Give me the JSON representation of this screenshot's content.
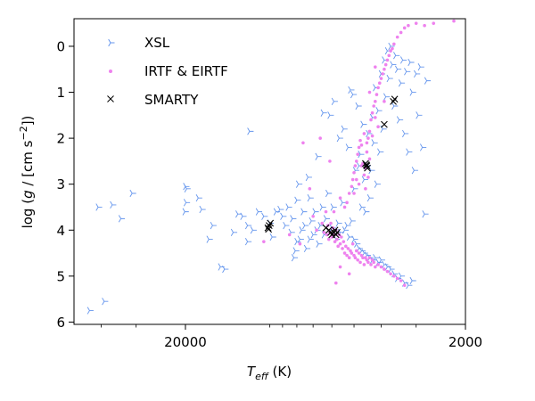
{
  "chart_data": {
    "type": "scatter",
    "xlabel": {
      "base": "T",
      "sub": "eff",
      "unit": " (K)"
    },
    "ylabel": {
      "pre": "log (",
      "g": "g",
      "mid": " / [cm s",
      "sup": "−2",
      "post": "])"
    },
    "x_scale": "log",
    "x_reversed": true,
    "y_reversed": true,
    "xlim": [
      50000,
      2000
    ],
    "ylim": [
      6.05,
      -0.6
    ],
    "x_major_ticks": [
      {
        "value": 20000,
        "label": "20000"
      },
      {
        "value": 2000,
        "label": "2000"
      }
    ],
    "x_minor_ticks": [
      40000,
      30000,
      10000,
      9000,
      8000,
      7000,
      6000,
      5000,
      4000,
      3000
    ],
    "y_ticks": [
      {
        "value": 0,
        "label": "0"
      },
      {
        "value": 1,
        "label": "1"
      },
      {
        "value": 2,
        "label": "2"
      },
      {
        "value": 3,
        "label": "3"
      },
      {
        "value": 4,
        "label": "4"
      },
      {
        "value": 5,
        "label": "5"
      },
      {
        "value": 6,
        "label": "6"
      }
    ],
    "grid": false,
    "legend_position": "top-left",
    "series": [
      {
        "name": "XSL",
        "marker": "tri-right",
        "color": "#6495ED",
        "points": [
          [
            44000,
            5.75
          ],
          [
            39000,
            5.55
          ],
          [
            41000,
            3.5
          ],
          [
            36500,
            3.45
          ],
          [
            34000,
            3.75
          ],
          [
            31000,
            3.2
          ],
          [
            20000,
            3.05
          ],
          [
            19800,
            3.1
          ],
          [
            19900,
            3.4
          ],
          [
            20100,
            3.6
          ],
          [
            18000,
            3.3
          ],
          [
            17500,
            3.55
          ],
          [
            16000,
            3.9
          ],
          [
            16500,
            4.2
          ],
          [
            15000,
            4.8
          ],
          [
            14500,
            4.85
          ],
          [
            13500,
            4.05
          ],
          [
            13000,
            3.65
          ],
          [
            12500,
            3.7
          ],
          [
            12000,
            3.9
          ],
          [
            11500,
            4.0
          ],
          [
            12000,
            4.25
          ],
          [
            11800,
            1.85
          ],
          [
            11000,
            3.6
          ],
          [
            10500,
            3.7
          ],
          [
            10000,
            3.85
          ],
          [
            9800,
            4.15
          ],
          [
            9500,
            3.6
          ],
          [
            9200,
            3.55
          ],
          [
            9000,
            3.7
          ],
          [
            8800,
            3.9
          ],
          [
            8600,
            3.5
          ],
          [
            8400,
            4.05
          ],
          [
            8300,
            3.75
          ],
          [
            8200,
            4.6
          ],
          [
            8100,
            4.45
          ],
          [
            8000,
            3.35
          ],
          [
            8000,
            4.25
          ],
          [
            7900,
            3.0
          ],
          [
            7800,
            4.2
          ],
          [
            7700,
            4.0
          ],
          [
            7600,
            3.6
          ],
          [
            7500,
            3.9
          ],
          [
            7400,
            4.4
          ],
          [
            7300,
            2.85
          ],
          [
            7200,
            3.3
          ],
          [
            7200,
            4.2
          ],
          [
            7100,
            3.8
          ],
          [
            7000,
            4.1
          ],
          [
            6900,
            3.6
          ],
          [
            6800,
            4.0
          ],
          [
            6750,
            2.4
          ],
          [
            6700,
            4.3
          ],
          [
            6600,
            3.9
          ],
          [
            6500,
            3.5
          ],
          [
            6450,
            1.45
          ],
          [
            6400,
            4.1
          ],
          [
            6300,
            3.75
          ],
          [
            6200,
            3.2
          ],
          [
            6100,
            1.5
          ],
          [
            6000,
            3.95
          ],
          [
            5950,
            3.5
          ],
          [
            5900,
            1.2
          ],
          [
            5800,
            4.2
          ],
          [
            5700,
            3.85
          ],
          [
            5650,
            2.0
          ],
          [
            5600,
            4.05
          ],
          [
            5500,
            3.4
          ],
          [
            5450,
            1.8
          ],
          [
            5400,
            4.0
          ],
          [
            5300,
            3.9
          ],
          [
            5250,
            2.2
          ],
          [
            5200,
            4.15
          ],
          [
            5150,
            0.95
          ],
          [
            5100,
            3.8
          ],
          [
            5050,
            1.05
          ],
          [
            5000,
            4.2
          ],
          [
            5000,
            3.1
          ],
          [
            4950,
            2.7
          ],
          [
            4900,
            4.3
          ],
          [
            4850,
            1.3
          ],
          [
            4800,
            2.6
          ],
          [
            4800,
            4.4
          ],
          [
            4750,
            2.35
          ],
          [
            4700,
            3.5
          ],
          [
            4700,
            4.45
          ],
          [
            4650,
            1.7
          ],
          [
            4600,
            2.9
          ],
          [
            4600,
            4.5
          ],
          [
            4550,
            3.6
          ],
          [
            4500,
            2.6
          ],
          [
            4500,
            4.55
          ],
          [
            4450,
            1.9
          ],
          [
            4400,
            3.3
          ],
          [
            4400,
            4.6
          ],
          [
            4350,
            2.7
          ],
          [
            4300,
            4.65
          ],
          [
            4300,
            1.55
          ],
          [
            4250,
            2.1
          ],
          [
            4200,
            4.6
          ],
          [
            4200,
            0.9
          ],
          [
            4150,
            3.0
          ],
          [
            4100,
            4.7
          ],
          [
            4100,
            1.4
          ],
          [
            4050,
            2.3
          ],
          [
            4000,
            4.65
          ],
          [
            4000,
            0.6
          ],
          [
            3950,
            1.8
          ],
          [
            3900,
            4.75
          ],
          [
            3900,
            0.3
          ],
          [
            3850,
            1.1
          ],
          [
            3800,
            4.8
          ],
          [
            3800,
            0.1
          ],
          [
            3750,
            0.7
          ],
          [
            3700,
            4.85
          ],
          [
            3700,
            0.0
          ],
          [
            3650,
            0.4
          ],
          [
            3600,
            4.95
          ],
          [
            3600,
            1.3
          ],
          [
            3550,
            0.2
          ],
          [
            3500,
            5.05
          ],
          [
            3500,
            0.5
          ],
          [
            3450,
            1.6
          ],
          [
            3400,
            5.0
          ],
          [
            3400,
            0.8
          ],
          [
            3350,
            0.3
          ],
          [
            3300,
            5.15
          ],
          [
            3300,
            1.9
          ],
          [
            3250,
            0.55
          ],
          [
            3200,
            5.2
          ],
          [
            3200,
            2.3
          ],
          [
            3150,
            0.35
          ],
          [
            3100,
            5.1
          ],
          [
            3100,
            1.0
          ],
          [
            3050,
            2.7
          ],
          [
            3000,
            0.6
          ],
          [
            2950,
            1.5
          ],
          [
            2900,
            0.45
          ],
          [
            2850,
            2.2
          ],
          [
            2800,
            3.65
          ],
          [
            2750,
            0.75
          ]
        ]
      },
      {
        "name": "IRTF & EIRTF",
        "marker": "dot",
        "color": "#EE82EE",
        "points": [
          [
            10500,
            4.25
          ],
          [
            8500,
            4.1
          ],
          [
            7800,
            4.3
          ],
          [
            7600,
            2.1
          ],
          [
            7200,
            3.1
          ],
          [
            7000,
            3.7
          ],
          [
            6800,
            4.0
          ],
          [
            6600,
            2.0
          ],
          [
            6500,
            3.85
          ],
          [
            6400,
            4.05
          ],
          [
            6300,
            3.6
          ],
          [
            6250,
            4.1
          ],
          [
            6200,
            3.9
          ],
          [
            6150,
            4.2
          ],
          [
            6100,
            4.05
          ],
          [
            6050,
            3.85
          ],
          [
            6000,
            4.15
          ],
          [
            5950,
            3.95
          ],
          [
            5900,
            4.1
          ],
          [
            5850,
            4.25
          ],
          [
            5800,
            4.0
          ],
          [
            5750,
            4.2
          ],
          [
            5700,
            4.35
          ],
          [
            5650,
            4.1
          ],
          [
            5600,
            4.3
          ],
          [
            5550,
            4.15
          ],
          [
            5500,
            4.4
          ],
          [
            5450,
            4.25
          ],
          [
            5400,
            4.5
          ],
          [
            5350,
            4.35
          ],
          [
            5300,
            4.55
          ],
          [
            5250,
            4.4
          ],
          [
            5200,
            4.6
          ],
          [
            5150,
            4.45
          ],
          [
            5100,
            4.5
          ],
          [
            5050,
            4.3
          ],
          [
            5000,
            4.55
          ],
          [
            4950,
            4.6
          ],
          [
            4900,
            4.45
          ],
          [
            4850,
            4.65
          ],
          [
            4800,
            4.5
          ],
          [
            4750,
            4.7
          ],
          [
            4700,
            4.55
          ],
          [
            4650,
            4.6
          ],
          [
            4600,
            4.75
          ],
          [
            4550,
            4.6
          ],
          [
            4500,
            4.65
          ],
          [
            4450,
            4.7
          ],
          [
            4400,
            4.6
          ],
          [
            4350,
            4.75
          ],
          [
            4300,
            4.65
          ],
          [
            4250,
            4.7
          ],
          [
            4200,
            4.8
          ],
          [
            4100,
            4.75
          ],
          [
            4000,
            4.8
          ],
          [
            3900,
            4.85
          ],
          [
            3800,
            4.9
          ],
          [
            3700,
            4.95
          ],
          [
            3600,
            5.0
          ],
          [
            3500,
            5.05
          ],
          [
            3400,
            5.1
          ],
          [
            3300,
            5.2
          ],
          [
            5800,
            5.15
          ],
          [
            5600,
            4.8
          ],
          [
            5200,
            4.95
          ],
          [
            5400,
            3.5
          ],
          [
            5300,
            3.4
          ],
          [
            5200,
            3.2
          ],
          [
            5100,
            3.05
          ],
          [
            5050,
            2.9
          ],
          [
            5000,
            2.75
          ],
          [
            4950,
            2.6
          ],
          [
            4900,
            2.5
          ],
          [
            4850,
            2.35
          ],
          [
            4800,
            2.2
          ],
          [
            4750,
            2.05
          ],
          [
            4700,
            2.15
          ],
          [
            4650,
            2.55
          ],
          [
            4600,
            2.8
          ],
          [
            4550,
            2.65
          ],
          [
            4500,
            2.3
          ],
          [
            4450,
            2.0
          ],
          [
            4400,
            1.85
          ],
          [
            4350,
            1.6
          ],
          [
            4300,
            1.45
          ],
          [
            4250,
            1.3
          ],
          [
            4200,
            1.2
          ],
          [
            4150,
            1.05
          ],
          [
            4100,
            0.9
          ],
          [
            4050,
            0.8
          ],
          [
            4000,
            0.7
          ],
          [
            3950,
            0.6
          ],
          [
            3900,
            0.5
          ],
          [
            3850,
            0.4
          ],
          [
            3800,
            0.3
          ],
          [
            3750,
            0.2
          ],
          [
            3700,
            0.1
          ],
          [
            3650,
            0.05
          ],
          [
            3600,
            -0.05
          ],
          [
            3500,
            -0.2
          ],
          [
            3400,
            -0.3
          ],
          [
            3300,
            -0.4
          ],
          [
            3200,
            -0.45
          ],
          [
            3000,
            -0.5
          ],
          [
            2800,
            -0.45
          ],
          [
            2600,
            -0.5
          ],
          [
            2200,
            -0.55
          ],
          [
            4600,
            1.9
          ],
          [
            4500,
            2.1
          ],
          [
            4400,
            2.45
          ],
          [
            4300,
            1.95
          ],
          [
            4200,
            1.55
          ],
          [
            4100,
            1.75
          ],
          [
            4900,
            2.9
          ],
          [
            5000,
            3.2
          ],
          [
            4800,
            3.0
          ],
          [
            4700,
            2.6
          ],
          [
            4550,
            3.1
          ],
          [
            4450,
            2.85
          ],
          [
            5600,
            3.3
          ],
          [
            5900,
            3.6
          ],
          [
            6100,
            2.5
          ],
          [
            4400,
            1.0
          ],
          [
            4200,
            0.45
          ],
          [
            3900,
            1.2
          ]
        ]
      },
      {
        "name": "SMARTY",
        "marker": "x",
        "color": "#000000",
        "points": [
          [
            10150,
            3.95
          ],
          [
            10050,
            3.9
          ],
          [
            9950,
            3.85
          ],
          [
            10100,
            3.98
          ],
          [
            6300,
            3.95
          ],
          [
            6150,
            4.0
          ],
          [
            6050,
            4.05
          ],
          [
            5900,
            4.05
          ],
          [
            5850,
            4.0
          ],
          [
            5800,
            4.1
          ],
          [
            5750,
            4.05
          ],
          [
            6000,
            4.1
          ],
          [
            4550,
            2.55
          ],
          [
            4500,
            2.6
          ],
          [
            4480,
            2.65
          ],
          [
            4520,
            2.58
          ],
          [
            3900,
            1.7
          ],
          [
            3620,
            1.2
          ],
          [
            3580,
            1.15
          ]
        ]
      }
    ]
  }
}
